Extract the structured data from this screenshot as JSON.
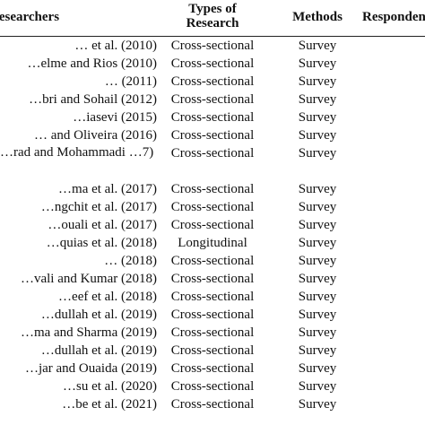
{
  "header": {
    "researchers": "Researchers",
    "types_line1": "Types of",
    "types_line2": "Research",
    "methods": "Methods",
    "respondents": "Respondents"
  },
  "rows": [
    {
      "researcher": "… et al. (2010)",
      "type": "Cross-sectional",
      "method": "Survey"
    },
    {
      "researcher": "…elme and Rios (2010)",
      "type": "Cross-sectional",
      "method": "Survey"
    },
    {
      "researcher": "… (2011)",
      "type": "Cross-sectional",
      "method": "Survey"
    },
    {
      "researcher": "…bri and Sohail (2012)",
      "type": "Cross-sectional",
      "method": "Survey"
    },
    {
      "researcher": "…iasevi (2015)",
      "type": "Cross-sectional",
      "method": "Survey"
    },
    {
      "researcher": "… and Oliveira (2016)",
      "type": "Cross-sectional",
      "method": "Survey"
    },
    {
      "researcher": "…rad and Mohammadi …7)",
      "type": "Cross-sectional",
      "method": "Survey"
    },
    {
      "researcher": "…ma et al. (2017)",
      "type": "Cross-sectional",
      "method": "Survey"
    },
    {
      "researcher": "…ngchit et al. (2017)",
      "type": "Cross-sectional",
      "method": "Survey"
    },
    {
      "researcher": "…ouali et al. (2017)",
      "type": "Cross-sectional",
      "method": "Survey"
    },
    {
      "researcher": "…quias et al. (2018)",
      "type": "Longitudinal",
      "method": "Survey"
    },
    {
      "researcher": "… (2018)",
      "type": "Cross-sectional",
      "method": "Survey"
    },
    {
      "researcher": "…vali and Kumar (2018)",
      "type": "Cross-sectional",
      "method": "Survey"
    },
    {
      "researcher": "…eef et al. (2018)",
      "type": "Cross-sectional",
      "method": "Survey"
    },
    {
      "researcher": "…dullah et al. (2019)",
      "type": "Cross-sectional",
      "method": "Survey"
    },
    {
      "researcher": "…ma and Sharma (2019)",
      "type": "Cross-sectional",
      "method": "Survey"
    },
    {
      "researcher": "…dullah et al. (2019)",
      "type": "Cross-sectional",
      "method": "Survey"
    },
    {
      "researcher": "…jar and Ouaida (2019)",
      "type": "Cross-sectional",
      "method": "Survey"
    },
    {
      "researcher": "…su et al. (2020)",
      "type": "Cross-sectional",
      "method": "Survey"
    },
    {
      "researcher": "…be et al. (2021)",
      "type": "Cross-sectional",
      "method": "Survey"
    }
  ]
}
